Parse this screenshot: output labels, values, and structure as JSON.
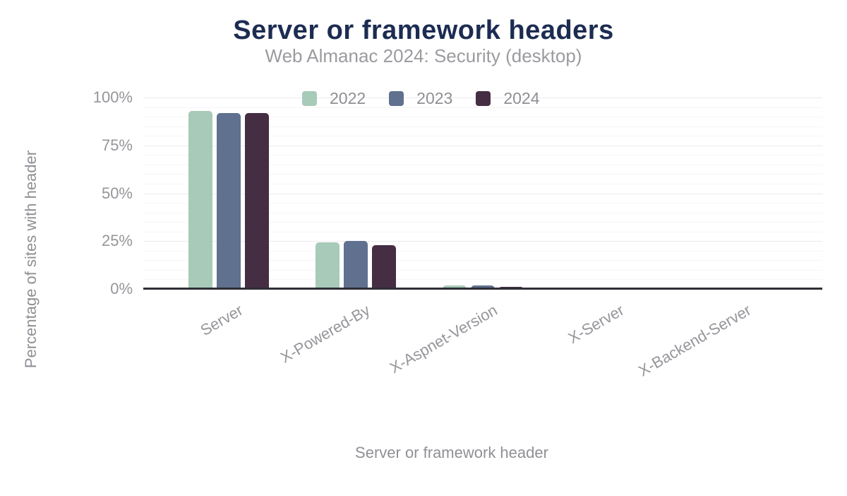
{
  "title": "Server or framework headers",
  "subtitle": "Web Almanac 2024: Security (desktop)",
  "axes": {
    "x_title": "Server or framework header",
    "y_title": "Percentage of sites with header"
  },
  "colors": {
    "title_navy": "#1c2c52",
    "muted_text": "#96969b",
    "axis_line": "#2e2e34",
    "grid_major": "#ebebee",
    "grid_minor": "#f6f6f8",
    "series_2022": "#a8cab9",
    "series_2023": "#5f718e",
    "series_2024": "#452e43"
  },
  "legend": [
    "2022",
    "2023",
    "2024"
  ],
  "chart_data": {
    "type": "bar",
    "title": "Server or framework headers",
    "subtitle": "Web Almanac 2024: Security (desktop)",
    "xlabel": "Server or framework header",
    "ylabel": "Percentage of sites with header",
    "categories": [
      "Server",
      "X-Powered-By",
      "X-Aspnet-Version",
      "X-Server",
      "X-Backend-Server"
    ],
    "series": [
      {
        "name": "2022",
        "color": "#a8cab9",
        "values": [
          93,
          24.5,
          2,
          0.7,
          0.4
        ]
      },
      {
        "name": "2023",
        "color": "#5f718e",
        "values": [
          92,
          25,
          2,
          0.7,
          0.4
        ]
      },
      {
        "name": "2024",
        "color": "#452e43",
        "values": [
          92,
          23,
          1,
          0.5,
          0.3
        ]
      }
    ],
    "ylim": [
      0,
      100
    ],
    "yticks": [
      0,
      25,
      50,
      75,
      100
    ],
    "ytick_suffix": "%",
    "minor_grid_step": 5,
    "grid": "horizontal",
    "legend_position": "top-center",
    "bar_corner_radius": 5,
    "category_label_rotation_deg": -30
  }
}
